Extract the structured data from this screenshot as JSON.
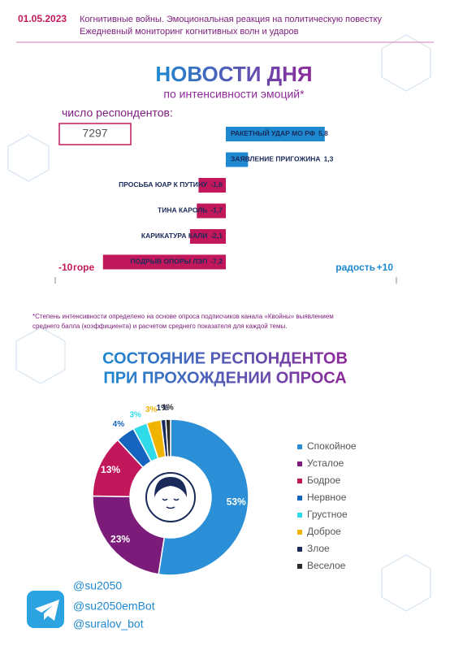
{
  "header": {
    "date": "01.05.2023",
    "lines": [
      "Когнитивные войны. Эмоциональная реакция на политическую повестку",
      "Ежедневный мониторинг когнитивных волн и ударов"
    ]
  },
  "respondents": {
    "label": "число респондентов:",
    "value": 7297
  },
  "chart_data": [
    {
      "type": "diverging-bar",
      "title": "НОВОСТИ ДНЯ",
      "subtitle": "по интенсивности эмоций*",
      "categories": [
        "РАКЕТНЫЙ УДАР МО РФ",
        "ЗАЯВЛЕНИЕ ПРИГОЖИНА",
        "ПРОСЬБА ЮАР К ПУТИНУ",
        "ТИНА КАРОЛЬ",
        "КАРИКАТУРА КАЛИ",
        "ПОДРЫВ ОПОРЫ ЛЭП"
      ],
      "values": [
        5.8,
        1.3,
        -1.6,
        -1.7,
        -2.1,
        -7.2
      ],
      "value_labels": [
        "5,8",
        "1,3",
        "-1,6",
        "-1,7",
        "-2,1",
        "-7,2"
      ],
      "xlim": [
        -10,
        10
      ],
      "xticks": [
        -10,
        {
          "value": 10,
          "label": "+10"
        }
      ],
      "x_left_label": "горе",
      "x_right_label": "радость",
      "positive_color": "#1e88d0",
      "negative_color": "#c2185b",
      "footnote": [
        "*Степень интенсивности определено на основе опроса подписчиков канала «Квойны» выявлением",
        "среднего балла (коэффициента) и расчетом среднего показателя для каждой темы."
      ]
    },
    {
      "type": "donut",
      "title": [
        "СОСТОЯНИЕ РЕСПОНДЕНТОВ",
        "ПРИ ПРОХОЖДЕНИИ ОПРОСА"
      ],
      "categories": [
        "Спокойное",
        "Усталое",
        "Бодрое",
        "Нервное",
        "Грустное",
        "Доброе",
        "Злое",
        "Веселое"
      ],
      "values": [
        53,
        23,
        13,
        4,
        3,
        3,
        1,
        1
      ],
      "value_labels": [
        "53%",
        "23%",
        "13%",
        "4%",
        "3%",
        "3%",
        "1%",
        "1%"
      ],
      "colors": [
        "#2a8fd6",
        "#7b1c7a",
        "#c2185b",
        "#1565c0",
        "#2fdbe8",
        "#f0b400",
        "#1a2a5a",
        "#2a2a2a"
      ]
    }
  ],
  "footer": {
    "handles": [
      "@su2050",
      "@su2050emBot",
      "@suralov_bot"
    ]
  }
}
